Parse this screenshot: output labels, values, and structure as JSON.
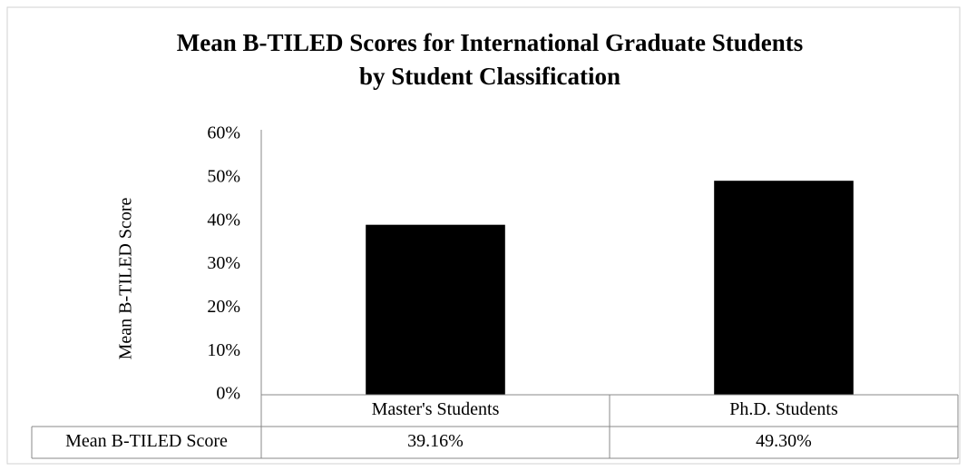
{
  "chart_data": {
    "type": "bar",
    "title": [
      "Mean B-TILED Scores for International Graduate Students",
      "by Student Classification"
    ],
    "y_label": "Mean B-TILED Score",
    "categories": [
      "Master's Students",
      "Ph.D. Students"
    ],
    "series": [
      {
        "name": "Mean B-TILED Score",
        "color": "#000000",
        "values": [
          39.16,
          49.3
        ],
        "value_labels": [
          "39.16%",
          "49.30%"
        ]
      }
    ],
    "ylim": [
      0,
      60
    ],
    "yticks": [
      {
        "value": 0,
        "label": "0%"
      },
      {
        "value": 10,
        "label": "10%"
      },
      {
        "value": 20,
        "label": "20%"
      },
      {
        "value": 30,
        "label": "30%"
      },
      {
        "value": 40,
        "label": "40%"
      },
      {
        "value": 50,
        "label": "50%"
      },
      {
        "value": 60,
        "label": "60%"
      }
    ],
    "grid": false,
    "data_table": true
  }
}
